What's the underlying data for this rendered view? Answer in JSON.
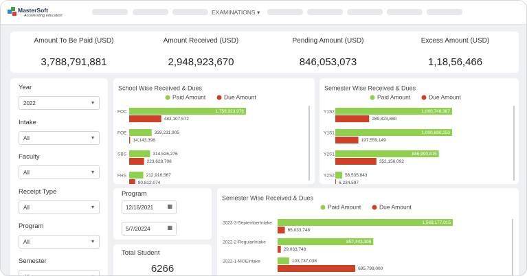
{
  "header": {
    "brand": "MasterSoft",
    "tagline": "Accelerating education",
    "nav": "EXAMINATIONS"
  },
  "kpis": [
    {
      "title": "Amount To Be Paid  (USD)",
      "value": "3,788,791,881"
    },
    {
      "title": "Amount Received (USD)",
      "value": "2,948,923,670"
    },
    {
      "title": "Pending Amount (USD)",
      "value": "846,053,073"
    },
    {
      "title": "Excess Amount (USD)",
      "value": "1,18,56,466"
    }
  ],
  "filters": [
    {
      "label": "Year",
      "value": "2022"
    },
    {
      "label": "Intake",
      "value": "All"
    },
    {
      "label": "Faculty",
      "value": "All"
    },
    {
      "label": "Receipt Type",
      "value": "All"
    },
    {
      "label": "Program",
      "value": "All"
    },
    {
      "label": "Semester",
      "value": "All"
    }
  ],
  "program": {
    "title": "Program",
    "from": "12/16/2021",
    "to": "5/7/20224"
  },
  "total_student": {
    "title": "Total Student",
    "value": "6266"
  },
  "chart_data": [
    {
      "type": "bar",
      "title": "School Wise Received & Dues",
      "categories": [
        "FOC",
        "FOE",
        "SBS",
        "FHS"
      ],
      "series": [
        {
          "name": "Paid Amount",
          "color": "#8fd14f",
          "values": [
            1758323976,
            339231905,
            314526276,
            212916567
          ],
          "value_labels": [
            "1,758,323,976",
            "339,231,905",
            "314,526,276",
            "212,916,567"
          ]
        },
        {
          "name": "Due Amount",
          "color": "#cc4128",
          "values": [
            483107572,
            14143398,
            223628708,
            90812074
          ],
          "value_labels": [
            "483,107,572",
            "14,143,398",
            "223,628,708",
            "90,812,074"
          ]
        }
      ]
    },
    {
      "type": "bar",
      "title": "Semester Wise Received & Dues",
      "categories": [
        "Y1S2",
        "Y1S1",
        "Y2S1",
        "Y2S2"
      ],
      "series": [
        {
          "name": "Paid Amount",
          "color": "#8fd14f",
          "values": [
            1000748387,
            1000690250,
            886990815,
            58535843
          ],
          "value_labels": [
            "1,000,748,387",
            "1,000,690,250",
            "886,990,815",
            "58,535,843"
          ]
        },
        {
          "name": "Due Amount",
          "color": "#cc4128",
          "values": [
            289823860,
            197559149,
            352156092,
            6234597
          ],
          "value_labels": [
            "289,823,860",
            "197,559,149",
            "352,156,092",
            "6,234,597"
          ]
        }
      ]
    },
    {
      "type": "bar",
      "title": "Semester Wise Received & Dues",
      "categories": [
        "2023-3-SeptemberIntake",
        "2022-2-RegularIntake",
        "2022-1-MOEIntake"
      ],
      "series": [
        {
          "name": "Paid Amount",
          "color": "#8fd14f",
          "values": [
            1569177015,
            857443306,
            103737038
          ],
          "value_labels": [
            "1,569,177,015",
            "857,443,306",
            "103,737,038"
          ]
        },
        {
          "name": "Due Amount",
          "color": "#cc4128",
          "values": [
            65033748,
            29033748,
            695799000
          ],
          "value_labels": [
            "65,033,748",
            "29,033,748",
            "695,799,000"
          ]
        }
      ]
    }
  ]
}
